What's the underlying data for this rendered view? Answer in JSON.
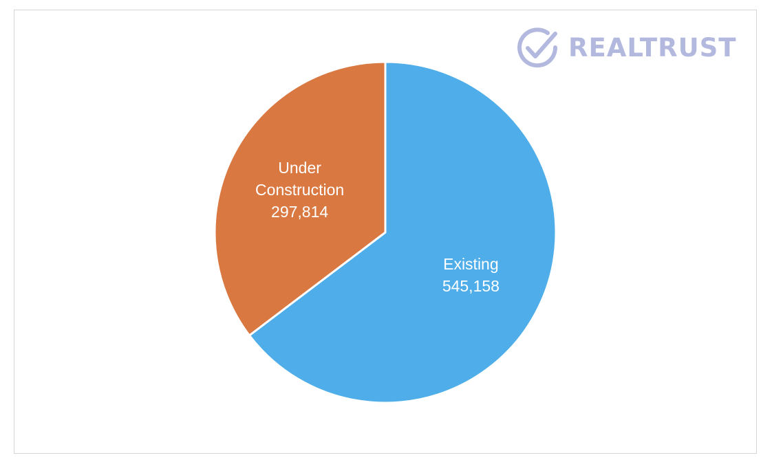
{
  "logo": {
    "text": "REALTRUST",
    "icon": "checkmark-circle-icon",
    "color": "#b3b9de"
  },
  "chart_data": {
    "type": "pie",
    "title": "",
    "legend": "none",
    "slices": [
      {
        "label_lines": [
          "Existing"
        ],
        "value": 545158,
        "value_label": "545,158",
        "color": "#4faee9"
      },
      {
        "label_lines": [
          "Under",
          "Construction"
        ],
        "value": 297814,
        "value_label": "297,814",
        "color": "#d97841"
      }
    ]
  }
}
